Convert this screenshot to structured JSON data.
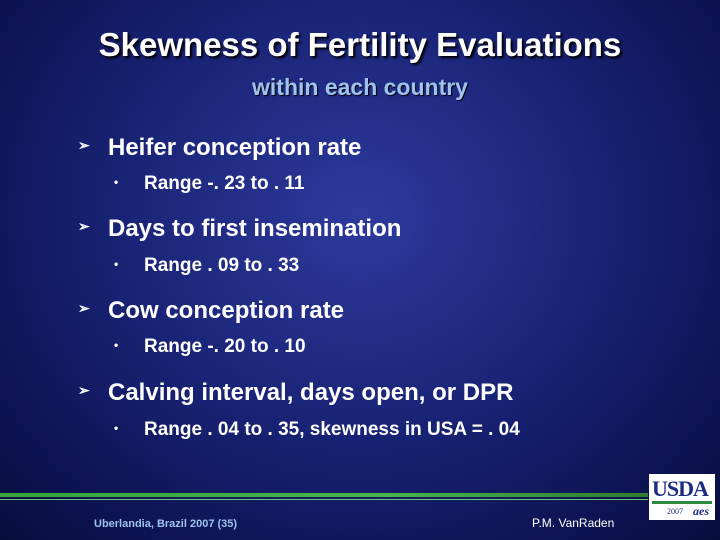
{
  "slide": {
    "title": "Skewness of Fertility Evaluations",
    "subtitle": "within each country"
  },
  "bullets": [
    {
      "text": "Heifer conception rate",
      "sub": "Range -. 23 to . 11"
    },
    {
      "text": "Days to first insemination",
      "sub": "Range . 09 to . 33"
    },
    {
      "text": "Cow conception rate",
      "sub": "Range -. 20 to . 10"
    },
    {
      "text": "Calving interval, days open, or DPR",
      "sub": "Range . 04 to . 35, skewness in USA = . 04"
    }
  ],
  "footer": {
    "left": "Uberlandia, Brazil 2007 (35)",
    "right": "P.M. VanRaden"
  },
  "logo": {
    "text": "USDA",
    "year": "2007",
    "agency": "aes"
  },
  "colors": {
    "background": "#1a2477",
    "subtitle": "#9fc3ec",
    "footer_line": "#3aa33a"
  }
}
